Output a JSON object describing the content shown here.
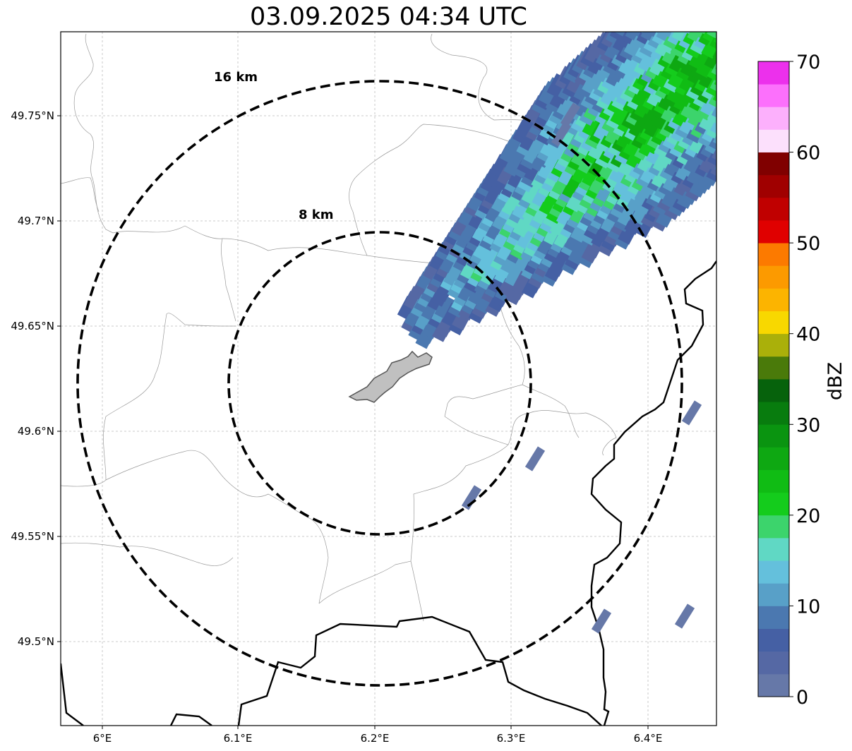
{
  "title": "03.09.2025 04:34 UTC",
  "map": {
    "y_ticks": [
      "49.75°N",
      "49.7°N",
      "49.65°N",
      "49.6°N",
      "49.55°N",
      "49.5°N"
    ],
    "x_ticks": [
      "6°E",
      "6.1°E",
      "6.2°E",
      "6.3°E",
      "6.4°E"
    ],
    "rings": [
      {
        "label": "8 km",
        "radius_km": 8
      },
      {
        "label": "16 km",
        "radius_km": 16
      }
    ]
  },
  "colorbar": {
    "label": "dBZ",
    "tick_labels": [
      "0",
      "10",
      "20",
      "30",
      "40",
      "50",
      "60",
      "70"
    ],
    "colors": [
      "#6678a8",
      "#5568a4",
      "#4560a4",
      "#4b78b0",
      "#58a0c8",
      "#64c0dc",
      "#60d8c4",
      "#3cd46c",
      "#14cc1c",
      "#10bc14",
      "#0ea812",
      "#0a9410",
      "#087c0e",
      "#06620c",
      "#4a7a0a",
      "#aab00a",
      "#f8d800",
      "#fcb400",
      "#fc9a00",
      "#fc7a00",
      "#e00000",
      "#c00000",
      "#a00000",
      "#800000",
      "#fce0fc",
      "#fcb0fc",
      "#fc70fc",
      "#ec30ec"
    ]
  }
}
